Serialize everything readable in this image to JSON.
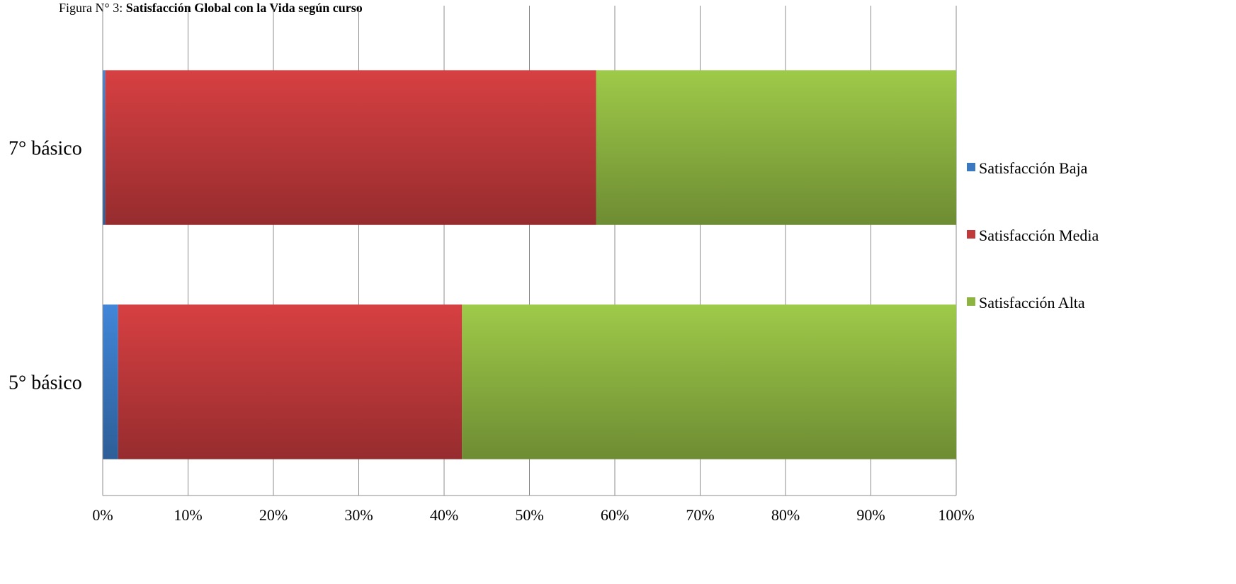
{
  "caption": {
    "prefix": "Figura N° 3: ",
    "title": "Satisfacción Global con la Vida según curso"
  },
  "chart_data": {
    "type": "bar",
    "orientation": "horizontal",
    "stacking": "percent",
    "categories": [
      "5° básico",
      "7° básico"
    ],
    "series": [
      {
        "name": "Satisfacción Baja",
        "values": [
          1.8,
          0.3
        ],
        "color": "#3a78c2"
      },
      {
        "name": "Satisfacción Media",
        "values": [
          40.3,
          57.5
        ],
        "color": "#c0393b"
      },
      {
        "name": "Satisfacción Alta",
        "values": [
          57.9,
          42.2
        ],
        "color": "#8db441"
      }
    ],
    "xlim": [
      0,
      100
    ],
    "xticks": [
      "0%",
      "10%",
      "20%",
      "30%",
      "40%",
      "50%",
      "60%",
      "70%",
      "80%",
      "90%",
      "100%"
    ],
    "grid": true,
    "legend": "right"
  }
}
